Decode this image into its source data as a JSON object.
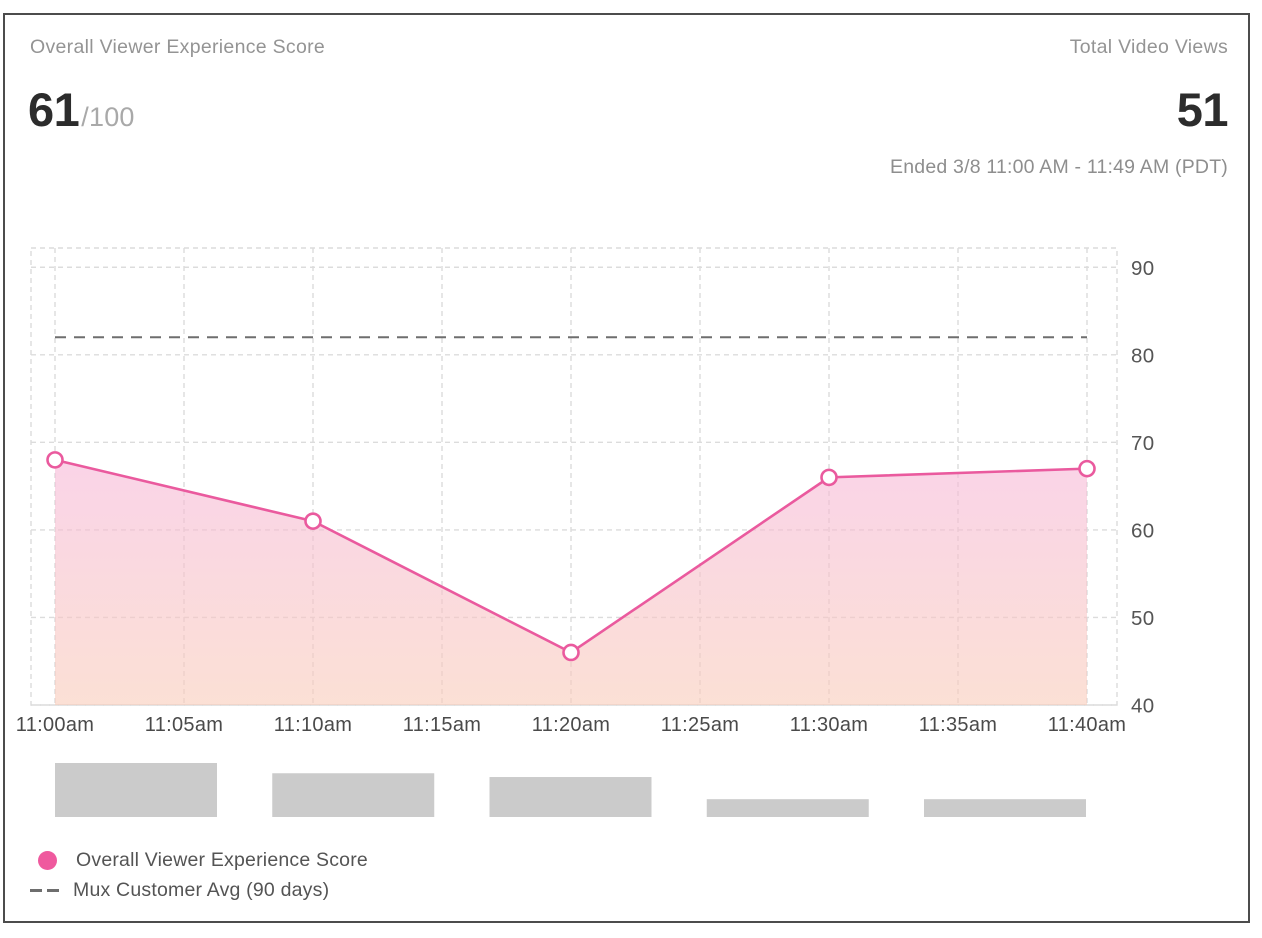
{
  "header": {
    "left_label": "Overall Viewer Experience Score",
    "score_value": "61",
    "score_denominator": "/100",
    "right_label": "Total Video Views",
    "views_value": "51",
    "date_range": "Ended 3/8 11:00 AM - 11:49 AM (PDT)"
  },
  "legend": {
    "series_label": "Overall Viewer Experience Score",
    "avg_label": "Mux Customer Avg (90 days)"
  },
  "colors": {
    "accent_pink": "#ea5a9e",
    "legend_dot": "#ef599e",
    "avg_line": "#6e6e6e",
    "grid": "#dcdcdc",
    "bar_gray": "#cbcbcb",
    "x_label": "#4a4a4a",
    "y_label": "#555555",
    "area_top": "rgba(246,183,216,0.6)",
    "area_bottom": "rgba(249,203,185,0.6)"
  },
  "chart_data": {
    "type": "line",
    "title": "Overall Viewer Experience Score over time",
    "x_tick_labels": [
      "11:00am",
      "11:05am",
      "11:10am",
      "11:15am",
      "11:20am",
      "11:25am",
      "11:30am",
      "11:35am",
      "11:40am"
    ],
    "y_ticks": [
      40,
      50,
      60,
      70,
      80,
      90
    ],
    "ylim": [
      40,
      92.2
    ],
    "grid": true,
    "legend_position": "bottom-left",
    "series": [
      {
        "name": "Overall Viewer Experience Score",
        "x": [
          "11:00am",
          "11:10am",
          "11:20am",
          "11:30am",
          "11:40am"
        ],
        "tick_indexes": [
          0,
          2,
          4,
          6,
          8
        ],
        "values": [
          68,
          61,
          46,
          66,
          67
        ],
        "style": "line-with-markers-and-area"
      }
    ],
    "reference_line": {
      "name": "Mux Customer Avg (90 days)",
      "value": 82,
      "style": "dashed"
    },
    "views_histogram": {
      "buckets": [
        "11:00am",
        "11:10am",
        "11:20am",
        "11:30am",
        "11:40am"
      ],
      "relative_values": [
        1,
        0.81,
        0.74,
        0.33,
        0.33
      ]
    }
  }
}
